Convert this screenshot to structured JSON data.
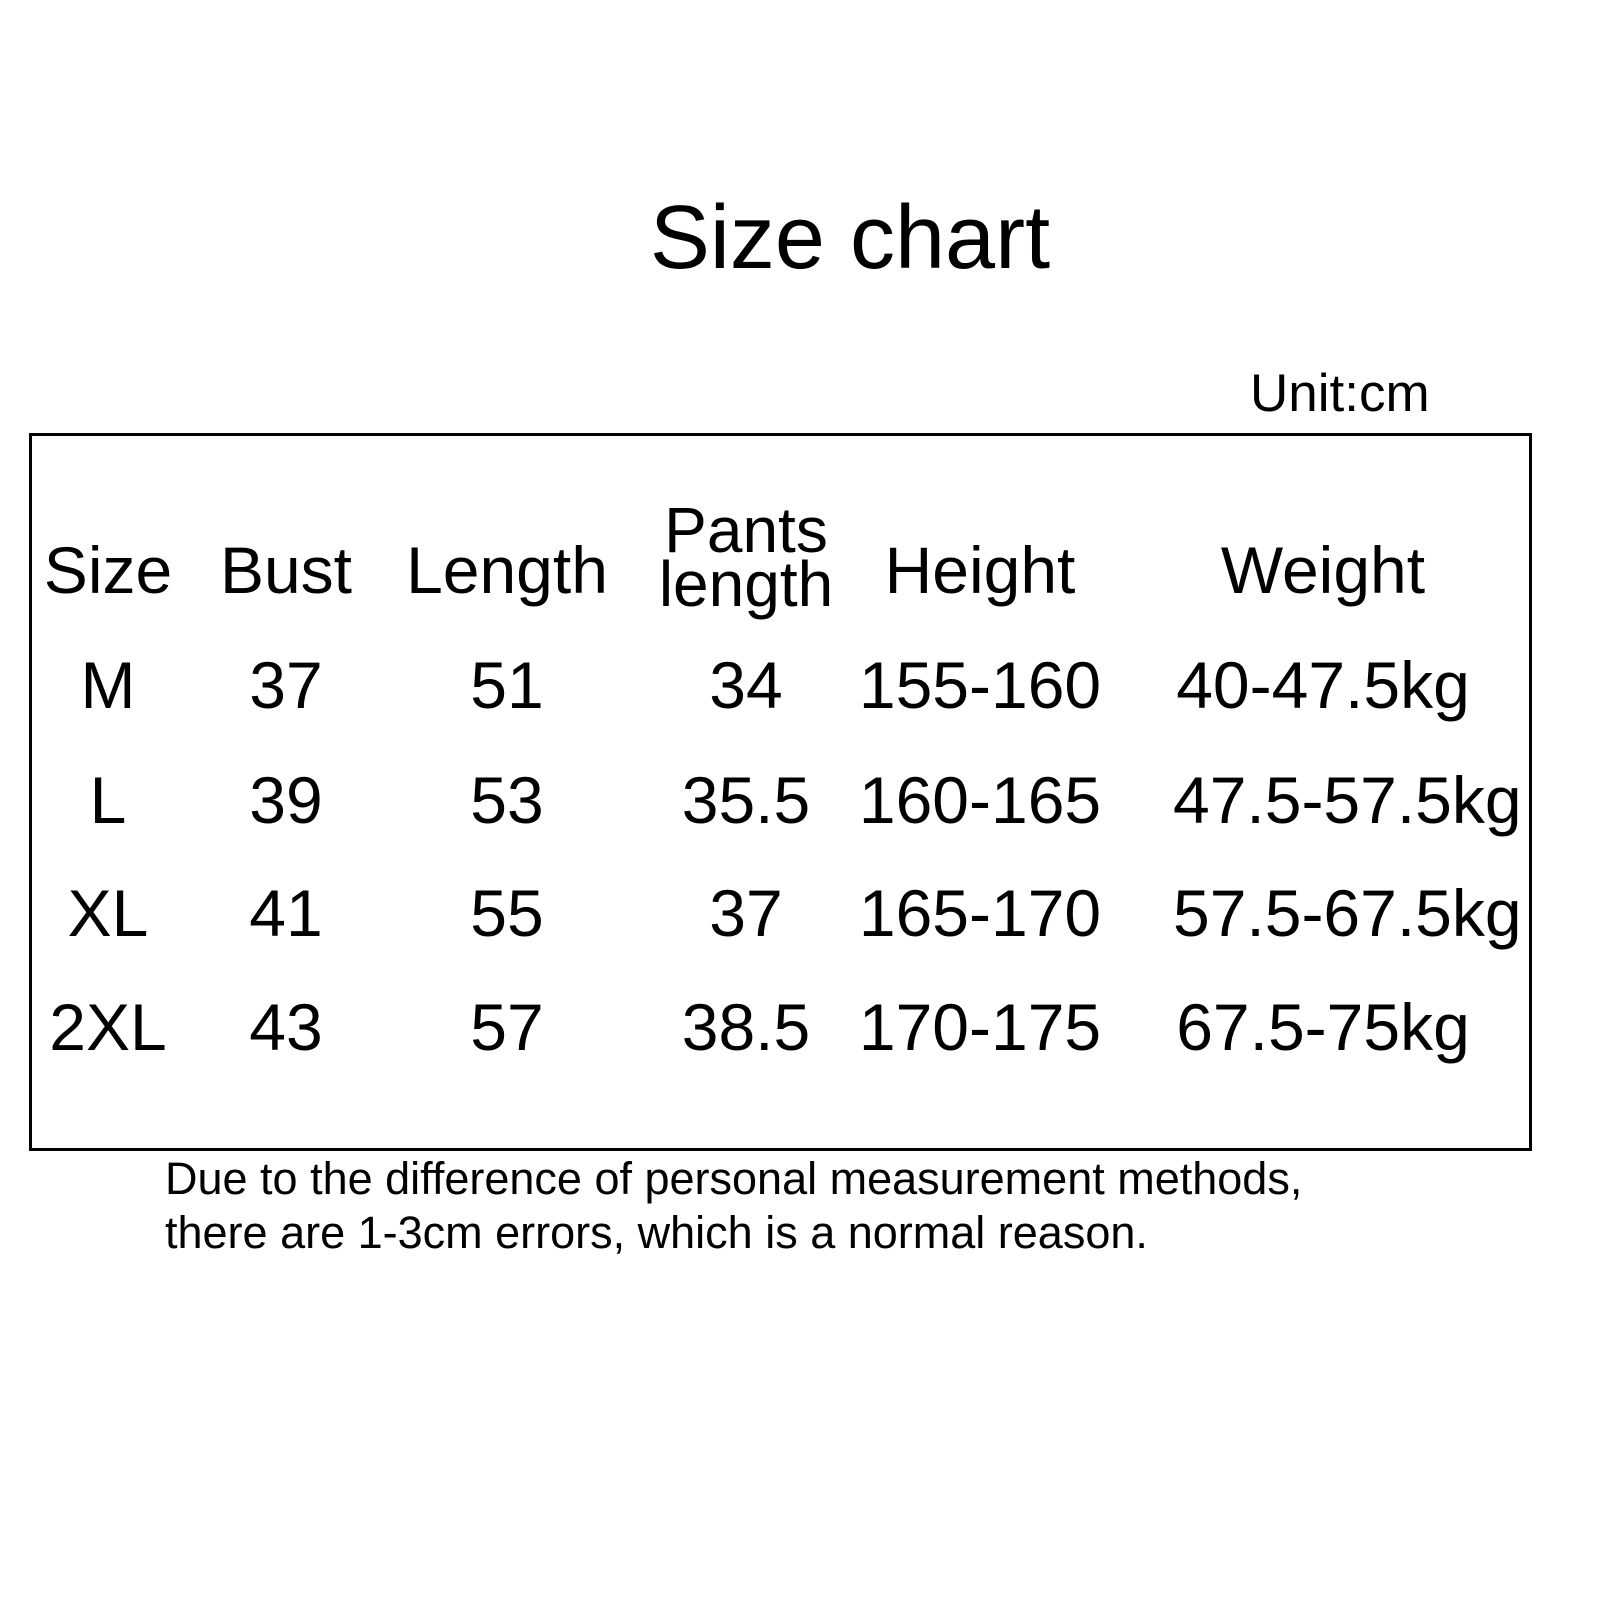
{
  "title": "Size chart",
  "unit": "Unit:cm",
  "table": {
    "headers": [
      "Size",
      "Bust",
      "Length",
      "Pants length",
      "Height",
      "Weight"
    ],
    "pants_header_lines": [
      "Pants",
      "length"
    ],
    "rows": [
      [
        "M",
        "37",
        "51",
        "34",
        "155-160",
        "40-47.5kg"
      ],
      [
        "L",
        "39",
        "53",
        "35.5",
        "160-165",
        "47.5-57.5kg"
      ],
      [
        "XL",
        "41",
        "55",
        "37",
        "165-170",
        "57.5-67.5kg"
      ],
      [
        "2XL",
        "43",
        "57",
        "38.5",
        "170-175",
        "67.5-75kg"
      ]
    ]
  },
  "note": [
    "Due to the difference of personal measurement methods,",
    "there are 1-3cm errors, which is a normal reason."
  ]
}
